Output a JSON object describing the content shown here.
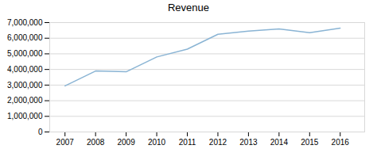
{
  "chart_data": {
    "type": "line",
    "title": "Revenue",
    "x": [
      2007,
      2008,
      2009,
      2010,
      2011,
      2012,
      2013,
      2014,
      2015,
      2016
    ],
    "values": [
      2950000,
      3900000,
      3850000,
      4800000,
      5300000,
      6250000,
      6450000,
      6600000,
      6350000,
      6650000
    ],
    "color": "#8ab4d4",
    "xlim": [
      2006.5,
      2016.8
    ],
    "xticks": [
      2007,
      2008,
      2009,
      2010,
      2011,
      2012,
      2013,
      2014,
      2015,
      2016
    ],
    "ylim": [
      0,
      7000000
    ],
    "yticks": [
      0,
      {
        "value": 1000000,
        "label": "1,000,000"
      },
      {
        "value": 2000000,
        "label": "2,000,000"
      },
      {
        "value": 3000000,
        "label": "3,000,000"
      },
      {
        "value": 4000000,
        "label": "4,000,000"
      },
      {
        "value": 5000000,
        "label": "5,000,000"
      },
      {
        "value": 6000000,
        "label": "6,000,000"
      },
      {
        "value": 7000000,
        "label": "7,000,000"
      }
    ],
    "grid": true
  }
}
